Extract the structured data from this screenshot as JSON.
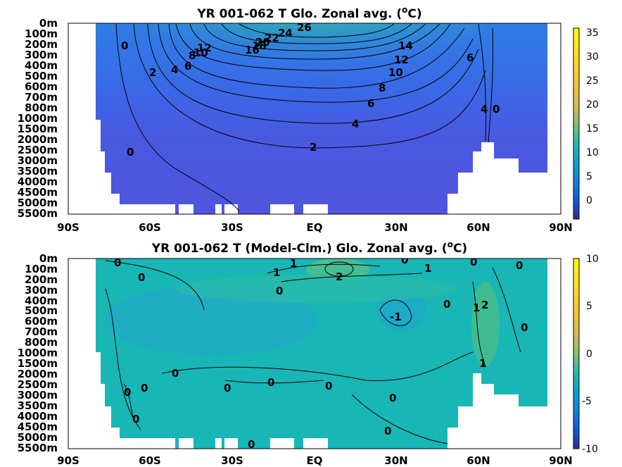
{
  "chart_data": [
    {
      "type": "heatmap",
      "title": "YR 001-062 T Glo. Zonal avg. (",
      "title_unit": "C)",
      "title_superscript": "o",
      "x_ticks": [
        "90S",
        "60S",
        "30S",
        "EQ",
        "30N",
        "60N",
        "90N"
      ],
      "y_ticks": [
        "0m",
        "100m",
        "200m",
        "300m",
        "400m",
        "500m",
        "600m",
        "700m",
        "800m",
        "1000m",
        "1500m",
        "2000m",
        "2500m",
        "3000m",
        "3500m",
        "4000m",
        "4500m",
        "5000m",
        "5500m"
      ],
      "colorbar": {
        "ticks": [
          35,
          30,
          25,
          20,
          15,
          10,
          5,
          0
        ],
        "range": [
          -4,
          36
        ],
        "colormap": "parula"
      },
      "contour_labels": [
        "26",
        "24",
        "22",
        "20",
        "18",
        "16",
        "14",
        "12",
        "10",
        "8",
        "6",
        "4",
        "2",
        "0",
        "12",
        "10",
        "8",
        "6",
        "4",
        "2",
        "0",
        "6",
        "4",
        "0"
      ]
    },
    {
      "type": "heatmap",
      "title": "YR 001-062 T (Model-Clm.) Glo. Zonal avg. (",
      "title_unit": "C)",
      "title_superscript": "o",
      "x_ticks": [
        "90S",
        "60S",
        "30S",
        "EQ",
        "30N",
        "60N",
        "90N"
      ],
      "y_ticks": [
        "0m",
        "100m",
        "200m",
        "300m",
        "400m",
        "500m",
        "600m",
        "700m",
        "800m",
        "1000m",
        "1500m",
        "2000m",
        "2500m",
        "3000m",
        "3500m",
        "4000m",
        "4500m",
        "5000m",
        "5500m"
      ],
      "colorbar": {
        "ticks": [
          10,
          5,
          0,
          -5,
          -10
        ],
        "range": [
          -10,
          10
        ],
        "colormap": "parula"
      },
      "contour_labels": [
        "0",
        "0",
        "1",
        "1",
        "2",
        "0",
        "0",
        "1",
        "0",
        "0",
        "-1",
        "1",
        "2",
        "0",
        "1",
        "0",
        "0",
        "0",
        "0",
        "0",
        "0",
        "0",
        "0",
        "0",
        "0",
        "0"
      ]
    }
  ]
}
